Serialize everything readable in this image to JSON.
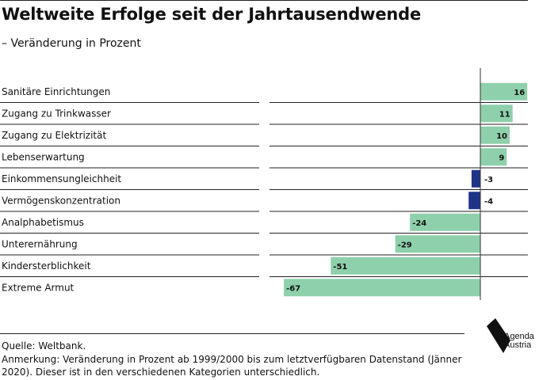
{
  "header": {
    "title": "Weltweite Erfolge seit der Jahrtausendwende",
    "subtitle": "– Veränderung in Prozent"
  },
  "footer": {
    "source": "Quelle: Weltbank.",
    "note": "Anmerkung: Veränderung in Prozent ab 1999/2000 bis zum letztverfügbaren Datenstand (Jänner 2020). Dieser ist in den verschiedenen Kategorien unterschiedlich."
  },
  "logo": {
    "line1": "Agenda",
    "line2": "Austria"
  },
  "colors": {
    "positive": "#8fd0ac",
    "negative": "#1f3487",
    "rule": "#222222",
    "axis": "#333333"
  },
  "chart_data": {
    "type": "bar",
    "orientation": "horizontal",
    "title": "Weltweite Erfolge seit der Jahrtausendwende",
    "subtitle": "– Veränderung in Prozent",
    "categories": [
      "Sanitäre Einrichtungen",
      "Zugang zu Trinkwasser",
      "Zugang zu Elektrizität",
      "Lebenserwartung",
      "Einkommensungleichheit",
      "Vermögenskonzentration",
      "Analphabetismus",
      "Unterernährung",
      "Kindersterblichkeit",
      "Extreme Armut"
    ],
    "values": [
      16,
      11,
      10,
      9,
      -3,
      -4,
      -24,
      -29,
      -51,
      -67
    ],
    "xlim": [
      -67,
      16
    ],
    "grid": false
  }
}
